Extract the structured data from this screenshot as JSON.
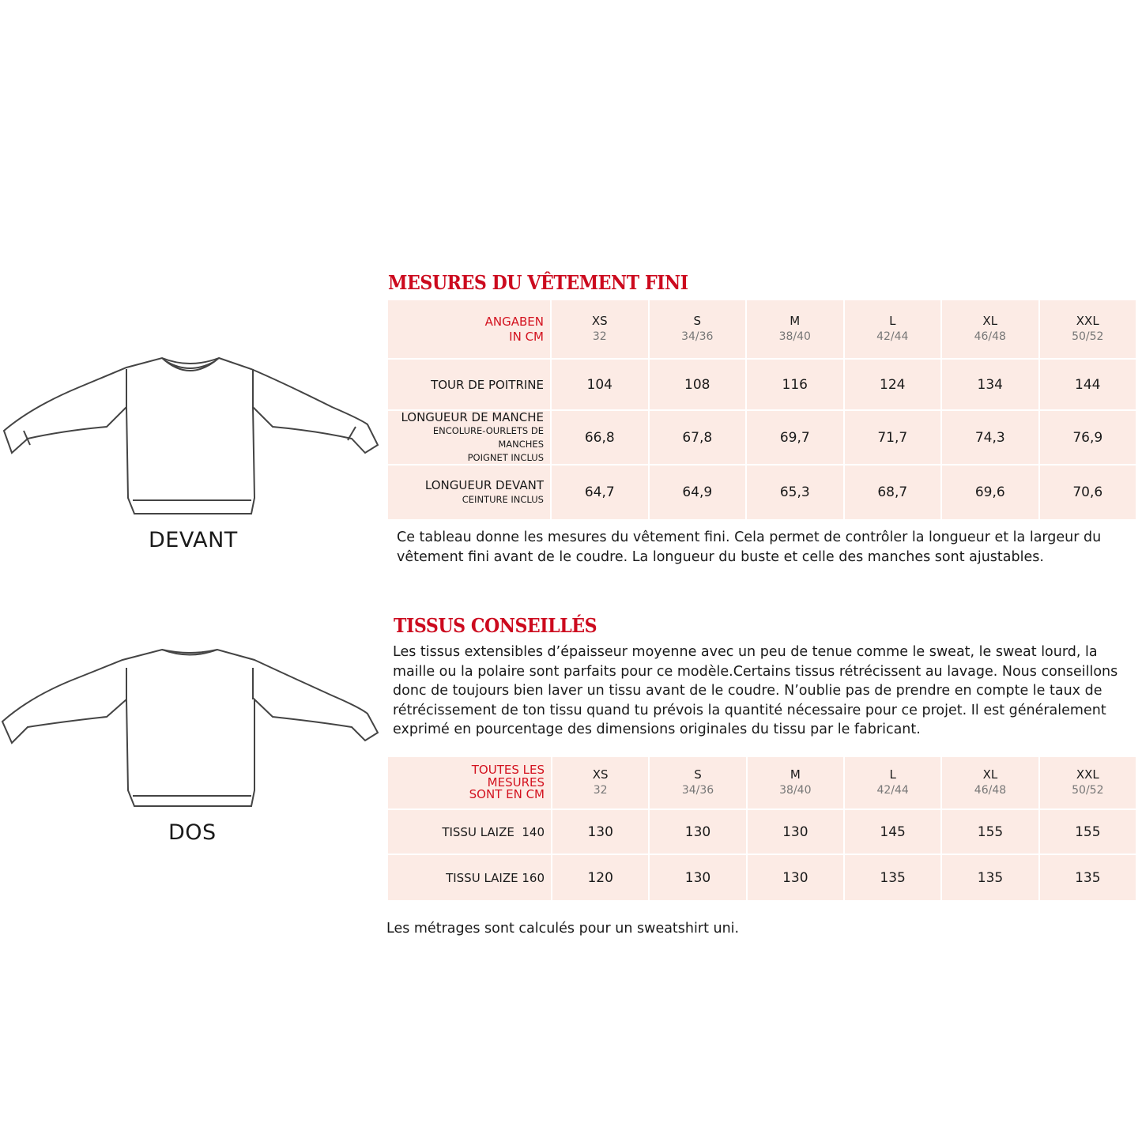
{
  "figures": {
    "front_label": "DEVANT",
    "back_label": "DOS"
  },
  "section1": {
    "title": "MESURES DU VÊTEMENT FINI",
    "corner": [
      "ANGABEN",
      "IN CM"
    ],
    "sizes": [
      {
        "size": "XS",
        "fr": "32"
      },
      {
        "size": "S",
        "fr": "34/36"
      },
      {
        "size": "M",
        "fr": "38/40"
      },
      {
        "size": "L",
        "fr": "42/44"
      },
      {
        "size": "XL",
        "fr": "46/48"
      },
      {
        "size": "XXL",
        "fr": "50/52"
      }
    ],
    "rows": [
      {
        "label": "TOUR DE POITRINE",
        "notes": [],
        "values": [
          "104",
          "108",
          "116",
          "124",
          "134",
          "144"
        ]
      },
      {
        "label": "LONGUEUR DE MANCHE",
        "notes": [
          "ENCOLURE-OURLETS DE MANCHES",
          "POIGNET INCLUS"
        ],
        "values": [
          "66,8",
          "67,8",
          "69,7",
          "71,7",
          "74,3",
          "76,9"
        ]
      },
      {
        "label": "LONGUEUR DEVANT",
        "notes": [
          "CEINTURE INCLUS"
        ],
        "values": [
          "64,7",
          "64,9",
          "65,3",
          "68,7",
          "69,6",
          "70,6"
        ]
      }
    ],
    "note": "Ce tableau donne les mesures du vêtement fini. Cela permet de contrôler la longueur et la largeur du vêtement fini avant de le coudre. La longueur du buste et celle des manches sont ajustables."
  },
  "section2": {
    "title": "TISSUS CONSEILLÉS",
    "text": "Les tissus extensibles d’épaisseur moyenne avec un peu de tenue comme le sweat, le sweat lourd, la maille ou la polaire sont parfaits pour ce modèle.Certains tissus rétrécissent au lavage. Nous conseillons donc de toujours bien laver un tissu avant de le coudre. N’oublie pas de prendre en compte le taux de rétrécissement de ton tissu quand tu prévois la quantité nécessaire pour ce projet. Il est généralement exprimé en pourcentage des dimensions originales du tissu par le fabricant.",
    "corner": [
      "TOUTES LES",
      "MESURES",
      "SONT EN CM"
    ],
    "rows": [
      {
        "label": "TISSU LAIZE  140",
        "values": [
          "130",
          "130",
          "130",
          "145",
          "155",
          "155"
        ]
      },
      {
        "label": "TISSU LAIZE 160",
        "values": [
          "120",
          "130",
          "130",
          "135",
          "135",
          "135"
        ]
      }
    ],
    "footnote": "Les métrages sont calculés pour un sweatshirt uni."
  },
  "colors": {
    "accent": "#cc0a1e",
    "table_bg": "#fcebe5"
  }
}
